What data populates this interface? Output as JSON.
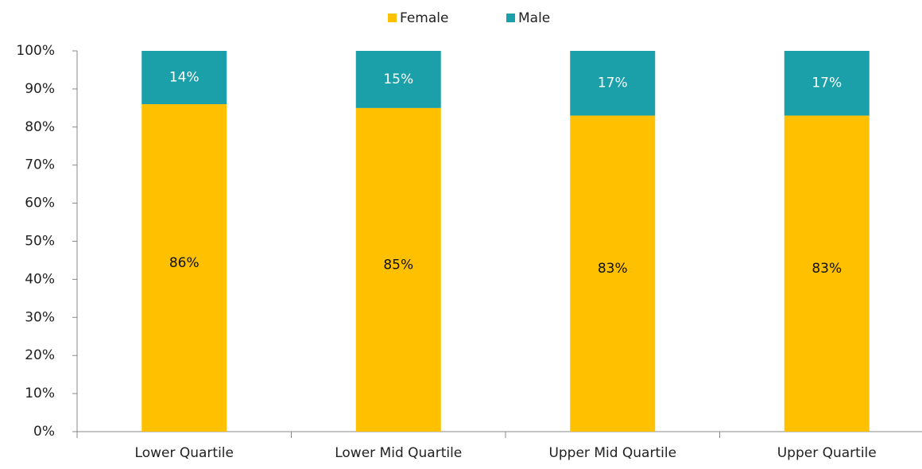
{
  "chart_data": {
    "type": "stacked_bar",
    "categories": [
      "Lower Quartile",
      "Lower Mid Quartile",
      "Upper Mid Quartile",
      "Upper Quartile"
    ],
    "series": [
      {
        "name": "Female",
        "color": "#ffc000",
        "values": [
          86,
          85,
          83,
          83
        ],
        "value_labels": [
          "86%",
          "85%",
          "83%",
          "83%"
        ]
      },
      {
        "name": "Male",
        "color": "#1b9fa8",
        "values": [
          14,
          15,
          17,
          17
        ],
        "value_labels": [
          "14%",
          "15%",
          "17%",
          "17%"
        ]
      }
    ],
    "ylim": [
      0,
      100
    ],
    "yticks": [
      {
        "value": 0,
        "label": "0%"
      },
      {
        "value": 10,
        "label": "10%"
      },
      {
        "value": 20,
        "label": "20%"
      },
      {
        "value": 30,
        "label": "30%"
      },
      {
        "value": 40,
        "label": "40%"
      },
      {
        "value": 50,
        "label": "50%"
      },
      {
        "value": 60,
        "label": "60%"
      },
      {
        "value": 70,
        "label": "70%"
      },
      {
        "value": 80,
        "label": "80%"
      },
      {
        "value": 90,
        "label": "90%"
      },
      {
        "value": 100,
        "label": "100%"
      }
    ],
    "grid": false,
    "legend": "top"
  }
}
